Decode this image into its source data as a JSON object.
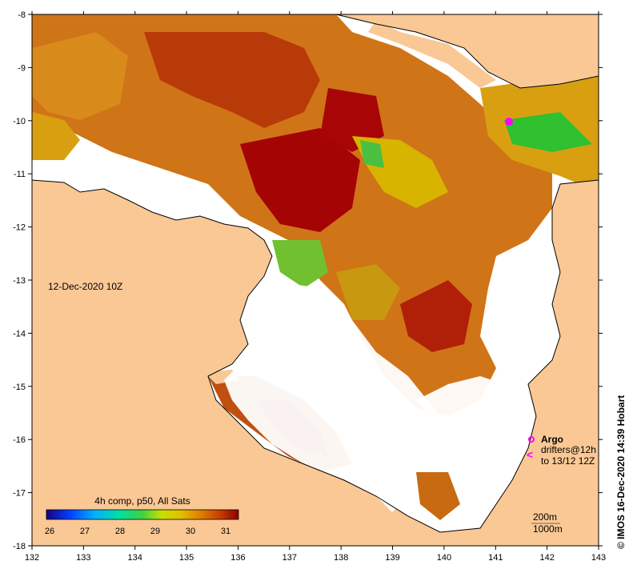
{
  "map": {
    "date_label": "12-Dec-2020 10Z",
    "credit": "©  IMOS 16-Dec-2020 14:39 Hobart",
    "lon_ticks": [
      "132",
      "133",
      "134",
      "135",
      "136",
      "137",
      "138",
      "139",
      "140",
      "141",
      "142",
      "143"
    ],
    "lat_ticks": [
      "-8",
      "-9",
      "-10",
      "-11",
      "-12",
      "-13",
      "-14",
      "-15",
      "-16",
      "-17",
      "-18"
    ],
    "lon_range": [
      132,
      143
    ],
    "lat_range": [
      -18,
      -8
    ],
    "colors": {
      "land": "#fac895",
      "nodata": "#ffffff",
      "sst_hot": "#a00000",
      "sst_warm": "#c8500a",
      "sst_mid": "#d77a1a",
      "sst_cool": "#d8c000",
      "sst_green": "#30c030",
      "argo": "#ff00ff"
    }
  },
  "colorbar": {
    "title": "4h comp, p50, All Sats",
    "labels": [
      "26",
      "27",
      "28",
      "29",
      "30",
      "31"
    ],
    "min": 26,
    "max": 31
  },
  "legend": {
    "argo_label": "Argo",
    "drifters_label": "drifters@12h",
    "drifters_range": "to 13/12 12Z",
    "drifter_glyph": "<",
    "depth_200": "200m",
    "depth_1000": "1000m"
  }
}
